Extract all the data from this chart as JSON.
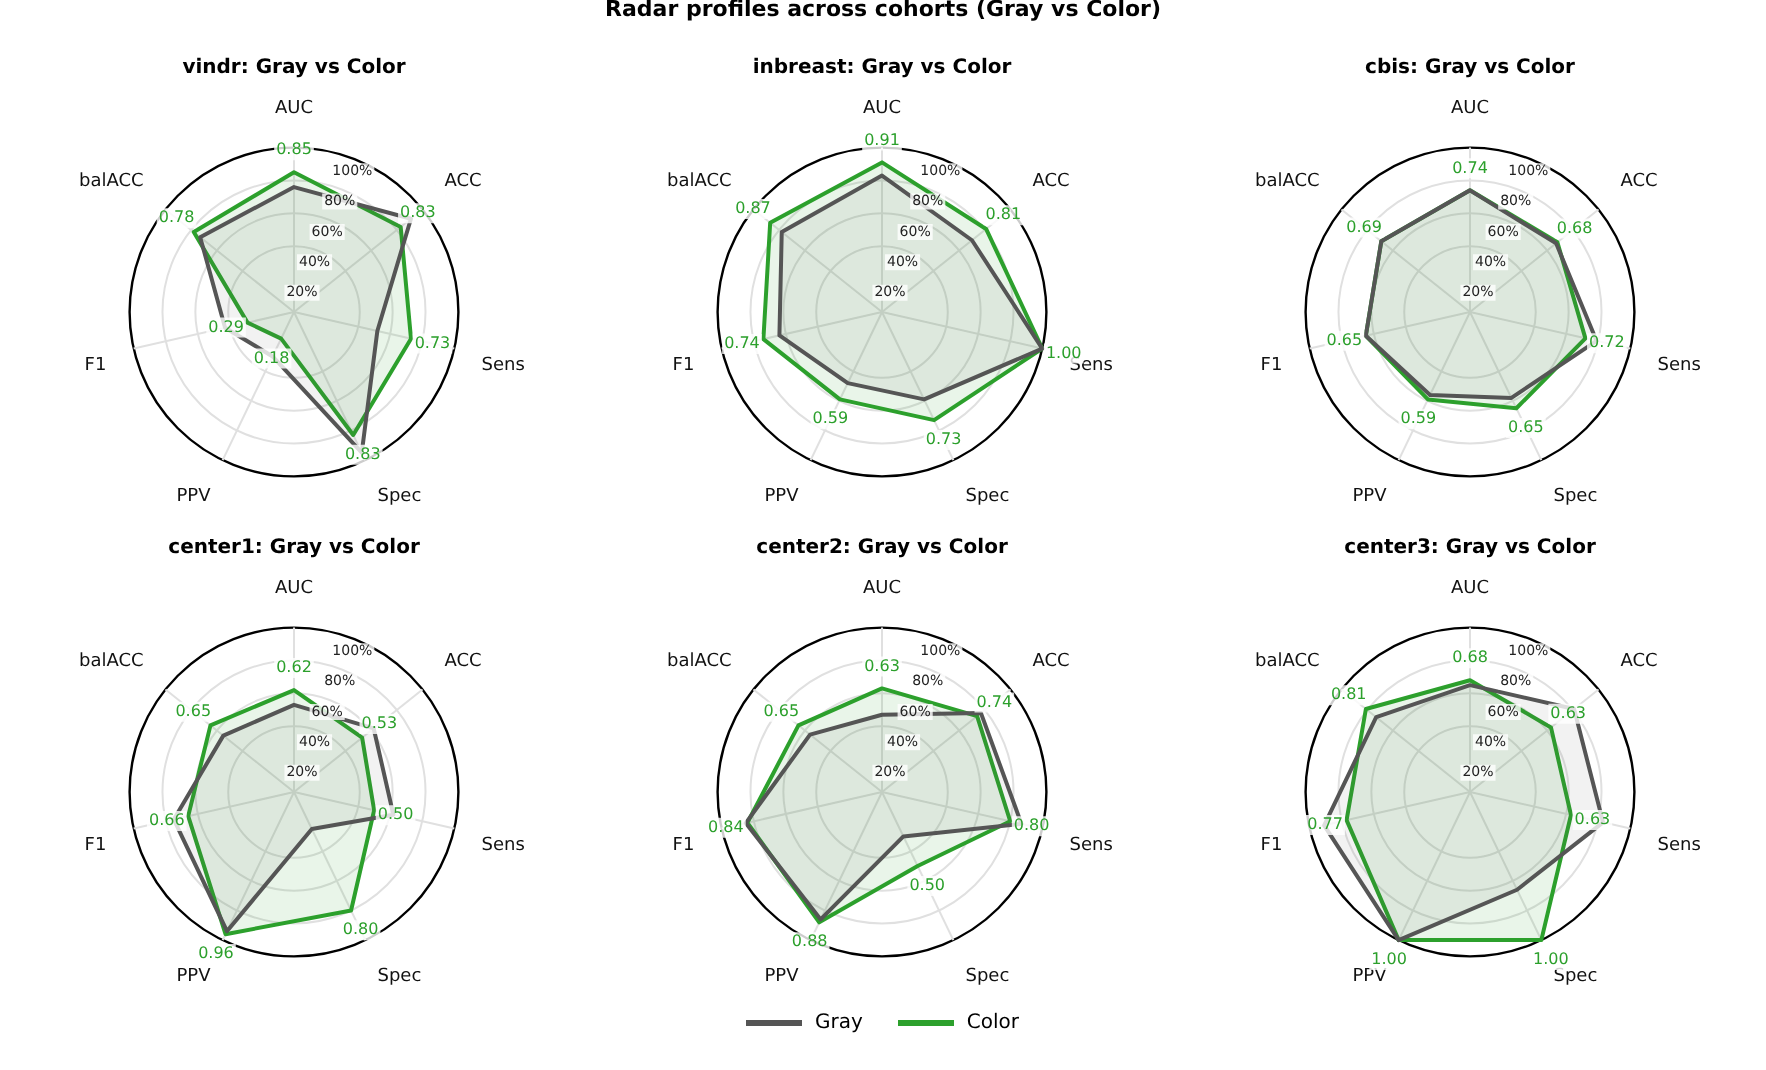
{
  "chart_data": [
    {
      "type": "other",
      "title": "Radar profiles across cohorts (Gray vs Color)"
    },
    {
      "type": "radar",
      "title": "vindr: Gray vs Color",
      "categories": [
        "AUC",
        "ACC",
        "Sens",
        "Spec",
        "PPV",
        "F1",
        "balACC"
      ],
      "series": [
        {
          "name": "Gray",
          "color": "#555555",
          "values": [
            0.76,
            0.91,
            0.52,
            0.95,
            0.3,
            0.43,
            0.73
          ]
        },
        {
          "name": "Color",
          "color": "#2ca02c",
          "values": [
            0.85,
            0.83,
            0.73,
            0.83,
            0.18,
            0.29,
            0.78
          ],
          "value_labels": [
            "0.85",
            "0.83",
            "0.73",
            "0.83",
            "0.18",
            "0.29",
            "0.78"
          ]
        }
      ],
      "ylim": [
        0,
        1
      ],
      "yticks": [
        {
          "value": 0.2,
          "label": "20%"
        },
        {
          "value": 0.4,
          "label": "40%"
        },
        {
          "value": 0.6,
          "label": "60%"
        },
        {
          "value": 0.8,
          "label": "80%"
        },
        {
          "value": 1,
          "label": "100%"
        }
      ],
      "grid": true,
      "legend": "bottom",
      "marker": "none",
      "line_style": "solid"
    },
    {
      "type": "radar",
      "title": "inbreast: Gray vs Color",
      "categories": [
        "AUC",
        "ACC",
        "Sens",
        "Spec",
        "PPV",
        "F1",
        "balACC"
      ],
      "series": [
        {
          "color": "#555555",
          "values": [
            0.83,
            0.7,
            1.0,
            0.59,
            0.48,
            0.64,
            0.78
          ]
        },
        {
          "color": "#2ca02c",
          "values": [
            0.91,
            0.81,
            1.0,
            0.73,
            0.59,
            0.74,
            0.87
          ],
          "value_labels": [
            "0.91",
            "0.81",
            "1.00",
            "0.73",
            "0.59",
            "0.74",
            "0.87"
          ]
        }
      ],
      "ylim": [
        0,
        1
      ],
      "yticks": [
        {
          "value": 0.2,
          "label": "20%"
        },
        {
          "value": 0.4,
          "label": "40%"
        },
        {
          "value": 0.6,
          "label": "60%"
        },
        {
          "value": 0.8,
          "label": "80%"
        },
        {
          "value": 1,
          "label": "100%"
        }
      ],
      "grid": true,
      "marker": "none",
      "line_style": "solid"
    },
    {
      "type": "radar",
      "title": "cbis: Gray vs Color",
      "categories": [
        "AUC",
        "ACC",
        "Sens",
        "Spec",
        "PPV",
        "F1",
        "balACC"
      ],
      "series": [
        {
          "color": "#555555",
          "values": [
            0.74,
            0.67,
            0.79,
            0.58,
            0.56,
            0.65,
            0.69
          ]
        },
        {
          "color": "#2ca02c",
          "values": [
            0.74,
            0.68,
            0.72,
            0.65,
            0.59,
            0.65,
            0.69
          ],
          "value_labels": [
            "0.74",
            "0.68",
            "0.72",
            "0.65",
            "0.59",
            "0.65",
            "0.69"
          ]
        }
      ],
      "ylim": [
        0,
        1
      ],
      "yticks": [
        {
          "value": 0.2,
          "label": "20%"
        },
        {
          "value": 0.4,
          "label": "40%"
        },
        {
          "value": 0.6,
          "label": "60%"
        },
        {
          "value": 0.8,
          "label": "80%"
        },
        {
          "value": 1,
          "label": "100%"
        }
      ],
      "grid": true,
      "marker": "none",
      "line_style": "solid"
    },
    {
      "type": "radar",
      "title": "center1: Gray vs Color",
      "categories": [
        "AUC",
        "ACC",
        "Sens",
        "Spec",
        "PPV",
        "F1",
        "balACC"
      ],
      "series": [
        {
          "color": "#555555",
          "values": [
            0.53,
            0.62,
            0.62,
            0.25,
            0.94,
            0.75,
            0.55
          ]
        },
        {
          "color": "#2ca02c",
          "values": [
            0.62,
            0.53,
            0.5,
            0.8,
            0.96,
            0.66,
            0.65
          ],
          "value_labels": [
            "0.62",
            "0.53",
            "0.50",
            "0.80",
            "0.96",
            "0.66",
            "0.65"
          ]
        }
      ],
      "ylim": [
        0,
        1
      ],
      "yticks": [
        {
          "value": 0.2,
          "label": "20%"
        },
        {
          "value": 0.4,
          "label": "40%"
        },
        {
          "value": 0.6,
          "label": "60%"
        },
        {
          "value": 0.8,
          "label": "80%"
        },
        {
          "value": 1,
          "label": "100%"
        }
      ],
      "grid": true,
      "marker": "none",
      "line_style": "solid"
    },
    {
      "type": "radar",
      "title": "center2: Gray vs Color",
      "categories": [
        "AUC",
        "ACC",
        "Sens",
        "Spec",
        "PPV",
        "F1",
        "balACC"
      ],
      "series": [
        {
          "color": "#555555",
          "values": [
            0.47,
            0.77,
            0.87,
            0.3,
            0.86,
            0.85,
            0.56
          ]
        },
        {
          "color": "#2ca02c",
          "values": [
            0.63,
            0.74,
            0.8,
            0.5,
            0.88,
            0.84,
            0.65
          ],
          "value_labels": [
            "0.63",
            "0.74",
            "0.80",
            "0.50",
            "0.88",
            "0.84",
            "0.65"
          ]
        }
      ],
      "ylim": [
        0,
        1
      ],
      "yticks": [
        {
          "value": 0.2,
          "label": "20%"
        },
        {
          "value": 0.4,
          "label": "40%"
        },
        {
          "value": 0.6,
          "label": "60%"
        },
        {
          "value": 0.8,
          "label": "80%"
        },
        {
          "value": 1,
          "label": "100%"
        }
      ],
      "grid": true,
      "marker": "none",
      "line_style": "solid"
    },
    {
      "type": "radar",
      "title": "center3: Gray vs Color",
      "categories": [
        "AUC",
        "ACC",
        "Sens",
        "Spec",
        "PPV",
        "F1",
        "balACC"
      ],
      "series": [
        {
          "color": "#555555",
          "values": [
            0.65,
            0.81,
            0.83,
            0.66,
            1.0,
            0.91,
            0.73
          ]
        },
        {
          "color": "#2ca02c",
          "values": [
            0.68,
            0.63,
            0.63,
            1.0,
            1.0,
            0.77,
            0.81
          ],
          "value_labels": [
            "0.68",
            "0.63",
            "0.63",
            "1.00",
            "1.00",
            "0.77",
            "0.81"
          ]
        }
      ],
      "ylim": [
        0,
        1
      ],
      "yticks": [
        {
          "value": 0.2,
          "label": "20%"
        },
        {
          "value": 0.4,
          "label": "40%"
        },
        {
          "value": 0.6,
          "label": "60%"
        },
        {
          "value": 0.8,
          "label": "80%"
        },
        {
          "value": 1,
          "label": "100%"
        }
      ],
      "grid": true,
      "marker": "none",
      "line_style": "solid"
    }
  ]
}
